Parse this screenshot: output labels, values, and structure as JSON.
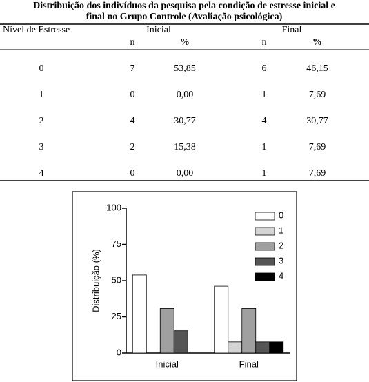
{
  "title": [
    "Distribuição dos indivíduos da pesquisa pela condição de estresse inicial e",
    "final no Grupo Controle (Avaliação psicológica)"
  ],
  "table": {
    "header": [
      "Nível de Estresse",
      "Inicial",
      "Final"
    ],
    "subheader": [
      "n",
      "%",
      "n",
      "%"
    ],
    "rows": [
      [
        "0",
        "7",
        "53,85",
        "6",
        "46,15"
      ],
      [
        "1",
        "0",
        "0,00",
        "1",
        "7,69"
      ],
      [
        "2",
        "4",
        "30,77",
        "4",
        "30,77"
      ],
      [
        "3",
        "2",
        "15,38",
        "1",
        "7,69"
      ],
      [
        "4",
        "0",
        "0,00",
        "1",
        "7,69"
      ]
    ]
  },
  "chart_data": {
    "type": "bar",
    "ylabel": "Distribuição (%)",
    "categories": [
      "Inicial",
      "Final"
    ],
    "series": [
      {
        "name": "0",
        "color": "#ffffff",
        "values": [
          53.85,
          46.15
        ]
      },
      {
        "name": "1",
        "color": "#d4d4d4",
        "values": [
          0,
          7.69
        ]
      },
      {
        "name": "2",
        "color": "#a0a0a0",
        "values": [
          30.77,
          30.77
        ]
      },
      {
        "name": "3",
        "color": "#555555",
        "values": [
          15.38,
          7.69
        ]
      },
      {
        "name": "4",
        "color": "#000000",
        "values": [
          0,
          7.69
        ]
      }
    ],
    "ylim": [
      0,
      100
    ],
    "yticks": [
      0,
      25,
      50,
      75,
      100
    ],
    "legend": "upper-right"
  }
}
